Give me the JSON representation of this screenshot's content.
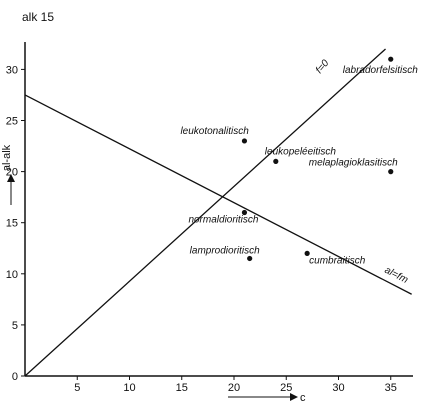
{
  "chart_data": {
    "type": "scatter",
    "header": "alk 15",
    "xlabel": "c",
    "ylabel": "al-alk",
    "xlim": [
      0,
      37
    ],
    "ylim": [
      0,
      33
    ],
    "xticks": [
      5,
      10,
      15,
      20,
      25,
      30,
      35
    ],
    "yticks": [
      0,
      5,
      10,
      15,
      20,
      25,
      30
    ],
    "points": [
      {
        "name": "labradorfelsitisch",
        "x": 35,
        "y": 31
      },
      {
        "name": "leukotonalitisch",
        "x": 21,
        "y": 23
      },
      {
        "name": "leukopeléeitisch",
        "x": 24,
        "y": 21
      },
      {
        "name": "melaplagioklasitisch",
        "x": 35,
        "y": 20
      },
      {
        "name": "normaldioritisch",
        "x": 21,
        "y": 16
      },
      {
        "name": "lamprodioritisch",
        "x": 21.5,
        "y": 11.5
      },
      {
        "name": "cumbraitisch",
        "x": 27,
        "y": 12
      }
    ],
    "lines": [
      {
        "name": "f=0",
        "x": [
          0,
          34.5
        ],
        "y": [
          0,
          32
        ]
      },
      {
        "name": "al=fm",
        "x": [
          0,
          37
        ],
        "y": [
          27.5,
          8
        ]
      }
    ]
  }
}
